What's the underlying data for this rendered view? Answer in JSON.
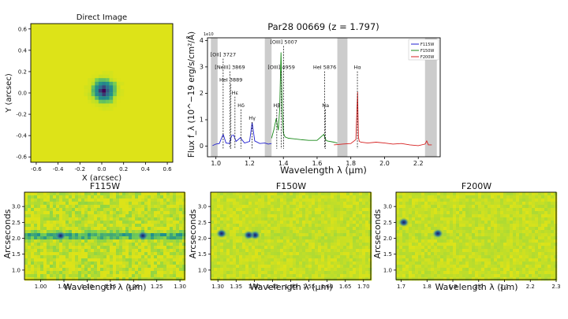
{
  "colors": {
    "viridis_low": "#440154",
    "viridis_mid": "#21918c",
    "viridis_bg": "#dde318",
    "F115W": "#1f1fd0",
    "F150W": "#1a8a1a",
    "F200W": "#d62020",
    "exclude_band": "#cccccc",
    "axes": "#000000"
  },
  "chart_data": [
    {
      "id": "direct_image",
      "type": "heatmap",
      "title": "Direct Image",
      "xlabel": "X (arcsec)",
      "ylabel": "Y (arcsec)",
      "xlim": [
        -0.65,
        0.65
      ],
      "ylim": [
        -0.65,
        0.65
      ],
      "xticks": [
        "-0.6",
        "-0.4",
        "-0.2",
        "0.0",
        "0.2",
        "0.4",
        "0.6"
      ],
      "yticks": [
        "-0.6",
        "-0.4",
        "-0.2",
        "0.0",
        "0.2",
        "0.4",
        "0.6"
      ],
      "source": {
        "x": 0.02,
        "y": 0.02,
        "peak": 1.0
      }
    },
    {
      "id": "spectrum",
      "type": "line",
      "title": "Par28 00669 (z = 1.797)",
      "xlabel": "Wavelength λ (μm)",
      "ylabel": "Flux f_λ (10^−19 erg/s/cm²/Å)",
      "offset_label": "1e10",
      "xlim": [
        0.95,
        2.33
      ],
      "ylim": [
        -0.4,
        4.1
      ],
      "xticks": [
        "1.0",
        "1.2",
        "1.4",
        "1.6",
        "1.8",
        "2.0",
        "2.2"
      ],
      "yticks": [
        "0",
        "1",
        "2",
        "3",
        "4"
      ],
      "legend": [
        "F115W",
        "F150W",
        "F200W"
      ],
      "legend_position": "top-right",
      "excluded_bands": [
        [
          0.97,
          1.01
        ],
        [
          1.29,
          1.33
        ],
        [
          1.72,
          1.78
        ],
        [
          2.24,
          2.31
        ]
      ],
      "series": [
        {
          "name": "F115W",
          "x": [
            0.98,
            1.0,
            1.02,
            1.043,
            1.06,
            1.08,
            1.093,
            1.105,
            1.12,
            1.145,
            1.17,
            1.2,
            1.215,
            1.23,
            1.26,
            1.29,
            1.31,
            1.33
          ],
          "y": [
            0.02,
            0.08,
            0.1,
            0.45,
            0.12,
            0.1,
            0.4,
            0.42,
            0.18,
            0.32,
            0.12,
            0.18,
            0.9,
            0.2,
            0.1,
            0.12,
            0.08,
            0.1
          ]
        },
        {
          "name": "F150W",
          "x": [
            1.33,
            1.345,
            1.358,
            1.37,
            1.378,
            1.386,
            1.393,
            1.4,
            1.41,
            1.43,
            1.46,
            1.5,
            1.55,
            1.6,
            1.64,
            1.65,
            1.66,
            1.7,
            1.72
          ],
          "y": [
            0.3,
            0.65,
            1.05,
            0.6,
            1.4,
            3.55,
            1.4,
            0.5,
            0.35,
            0.3,
            0.28,
            0.25,
            0.22,
            0.22,
            0.45,
            0.25,
            0.2,
            0.15,
            0.12
          ]
        },
        {
          "name": "F200W",
          "x": [
            1.7,
            1.75,
            1.8,
            1.83,
            1.84,
            1.845,
            1.85,
            1.86,
            1.9,
            1.95,
            2.0,
            2.05,
            2.1,
            2.15,
            2.2,
            2.24,
            2.25,
            2.26,
            2.28
          ],
          "y": [
            0.05,
            0.08,
            0.1,
            0.25,
            2.05,
            0.35,
            0.18,
            0.15,
            0.12,
            0.15,
            0.12,
            0.08,
            0.1,
            0.05,
            0.02,
            0.08,
            0.2,
            0.05,
            0.05
          ]
        }
      ],
      "lines": [
        {
          "label": "[OII] 3727",
          "x": 1.043,
          "level": 5
        },
        {
          "label": "[NeIII] 3869",
          "x": 1.083,
          "level": 4
        },
        {
          "label": "HeI 3889",
          "x": 1.089,
          "level": 3
        },
        {
          "label": "Hε",
          "x": 1.113,
          "level": 2
        },
        {
          "label": "Hδ",
          "x": 1.149,
          "level": 1
        },
        {
          "label": "Hγ",
          "x": 1.215,
          "level": 0
        },
        {
          "label": "Hβ",
          "x": 1.361,
          "level": 1
        },
        {
          "label": "[OIII] 4959",
          "x": 1.388,
          "level": 4
        },
        {
          "label": "[OIII] 5007",
          "x": 1.402,
          "level": 6
        },
        {
          "label": "HeI 5876",
          "x": 1.645,
          "level": 4
        },
        {
          "label": "Na",
          "x": 1.65,
          "level": 1
        },
        {
          "label": "Hα",
          "x": 1.839,
          "level": 4
        }
      ]
    },
    {
      "id": "f115w_2d",
      "type": "heatmap",
      "title": "F115W",
      "xlabel": "Wavelength λ (μm)",
      "ylabel": "Arcseconds",
      "xlim": [
        0.965,
        1.31
      ],
      "ylim": [
        0.7,
        3.45
      ],
      "xticks": [
        "1.00",
        "1.05",
        "1.10",
        "1.15",
        "1.20",
        "1.25",
        "1.30"
      ],
      "yticks": [
        "1.0",
        "1.5",
        "2.0",
        "2.5",
        "3.0"
      ],
      "trace_y": 2.08,
      "blobs": [
        {
          "x": 1.043,
          "y": 2.08
        },
        {
          "x": 1.22,
          "y": 2.08
        }
      ]
    },
    {
      "id": "f150w_2d",
      "type": "heatmap",
      "title": "F150W",
      "xlabel": "Wavelength λ (μm)",
      "ylabel": "Arcseconds",
      "xlim": [
        1.28,
        1.72
      ],
      "ylim": [
        0.7,
        3.45
      ],
      "xticks": [
        "1.30",
        "1.35",
        "1.40",
        "1.45",
        "1.50",
        "1.55",
        "1.60",
        "1.65",
        "1.70"
      ],
      "yticks": [
        "1.0",
        "1.5",
        "2.0",
        "2.5",
        "3.0"
      ],
      "trace_y": 2.08,
      "blobs": [
        {
          "x": 1.402,
          "y": 2.1
        },
        {
          "x": 1.385,
          "y": 2.1
        },
        {
          "x": 1.31,
          "y": 2.15
        }
      ]
    },
    {
      "id": "f200w_2d",
      "type": "heatmap",
      "title": "F200W",
      "xlabel": "Wavelength λ (μm)",
      "ylabel": "Arcseconds",
      "xlim": [
        1.68,
        2.3
      ],
      "ylim": [
        0.7,
        3.45
      ],
      "xticks": [
        "1.7",
        "1.8",
        "1.9",
        "2.0",
        "2.1",
        "2.2",
        "2.3"
      ],
      "yticks": [
        "1.0",
        "1.5",
        "2.0",
        "2.5",
        "3.0"
      ],
      "trace_y": 2.08,
      "blobs": [
        {
          "x": 1.842,
          "y": 2.15
        },
        {
          "x": 1.71,
          "y": 2.5
        }
      ]
    }
  ]
}
